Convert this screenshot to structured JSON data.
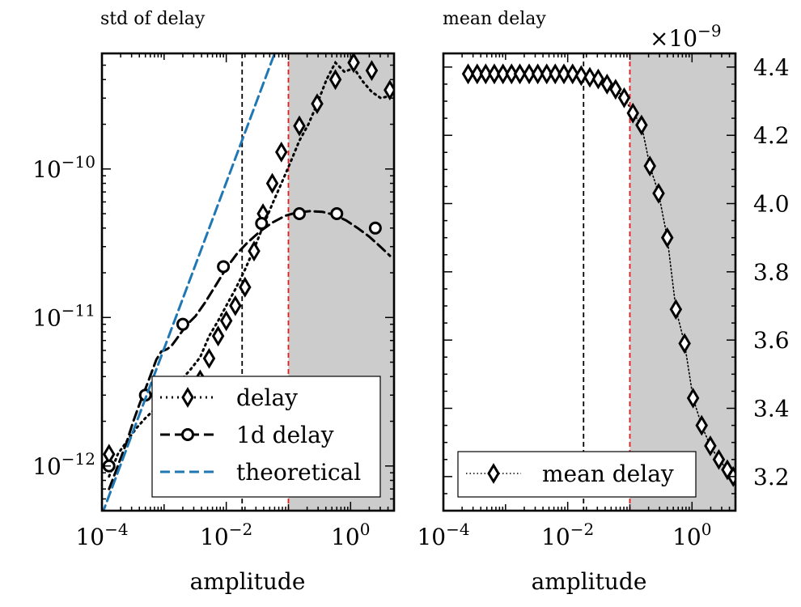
{
  "chart_data": [
    {
      "type": "line",
      "title": "std of delay",
      "xlabel": "amplitude",
      "ylabel": "",
      "xscale": "log",
      "yscale": "log",
      "xlim": [
        0.0001,
        5.0
      ],
      "ylim": [
        5e-13,
        6e-10
      ],
      "x_ticks": [
        {
          "value": 0.0001,
          "base": "10",
          "exp": "−4"
        },
        {
          "value": 0.01,
          "base": "10",
          "exp": "−2"
        },
        {
          "value": 1,
          "base": "10",
          "exp": "0"
        }
      ],
      "y_ticks": [
        {
          "value": 1e-12,
          "base": "10",
          "exp": "−12"
        },
        {
          "value": 1e-11,
          "base": "10",
          "exp": "−11"
        },
        {
          "value": 1e-10,
          "base": "10",
          "exp": "−10"
        }
      ],
      "grid": false,
      "legend_position": "lower-right",
      "shaded_region": {
        "x_from": 0.1,
        "x_to": 5.0,
        "color": "#cccccc"
      },
      "vlines": [
        {
          "x": 0.018,
          "color": "#000000",
          "style": "dashed"
        },
        {
          "x": 0.1,
          "color": "#e41a1c",
          "style": "dashed"
        }
      ],
      "series": [
        {
          "name": "delay",
          "color": "#000000",
          "line_style": "dotted",
          "marker": "diamond",
          "x": [
            0.00013,
            0.00018,
            0.00026,
            0.00036,
            0.0005,
            0.0007,
            0.00098,
            0.0014,
            0.0019,
            0.0027,
            0.0038,
            0.0053,
            0.0074,
            0.01,
            0.014,
            0.02,
            0.028,
            0.039,
            0.055,
            0.077,
            0.107,
            0.15,
            0.21,
            0.29,
            0.41,
            0.57,
            0.8,
            1.12,
            1.56,
            2.19,
            3.06,
            4.28
          ],
          "values": [
            8.5e-13,
            1.2e-12,
            1.5e-12,
            1.8e-12,
            2.1e-12,
            2.4e-12,
            2.7e-12,
            3.2e-12,
            3.8e-12,
            4.5e-12,
            5.4e-12,
            7.5e-12,
            9.5e-12,
            1.2e-11,
            1.55e-11,
            2.1e-11,
            2.9e-11,
            4.1e-11,
            5.8e-11,
            8e-11,
            1.1e-10,
            1.55e-10,
            2e-10,
            2.75e-10,
            4e-10,
            5.2e-10,
            4.5e-10,
            4.8e-10,
            3.9e-10,
            3.3e-10,
            3e-10,
            3.1e-10
          ],
          "marker_x": [
            0.00013,
            0.0019,
            0.0027,
            0.0038,
            0.0053,
            0.0074,
            0.01,
            0.014,
            0.02,
            0.028,
            0.039,
            0.055,
            0.077,
            0.15,
            0.29,
            0.57,
            1.12,
            2.19,
            4.28
          ],
          "marker_values": [
            1.2e-12,
            1.7e-12,
            2.7e-12,
            3.8e-12,
            5.3e-12,
            7.5e-12,
            9.5e-12,
            1.2e-11,
            1.6e-11,
            2.8e-11,
            5e-11,
            8e-11,
            1.3e-10,
            1.95e-10,
            2.75e-10,
            4e-10,
            5.2e-10,
            4.6e-10,
            3.4e-10
          ]
        },
        {
          "name": "1d delay",
          "color": "#000000",
          "line_style": "dashed",
          "marker": "circle",
          "x": [
            0.00013,
            0.00018,
            0.00025,
            0.00032,
            0.0004,
            0.0005,
            0.00062,
            0.00075,
            0.0009,
            0.0011,
            0.0013,
            0.0016,
            0.002,
            0.0025,
            0.0032,
            0.0045,
            0.0065,
            0.01,
            0.015,
            0.022,
            0.035,
            0.055,
            0.09,
            0.14,
            0.22,
            0.35,
            0.55,
            0.85,
            1.3,
            2.0,
            3.0,
            4.3
          ],
          "values": [
            7e-13,
            1e-12,
            1.45e-12,
            2e-12,
            2.6e-12,
            3.3e-12,
            4.2e-12,
            5.2e-12,
            5.9e-12,
            6.1e-12,
            6.4e-12,
            7.2e-12,
            8.2e-12,
            9.2e-12,
            1.02e-11,
            1.25e-11,
            1.6e-11,
            2.15e-11,
            2.7e-11,
            3.2e-11,
            3.8e-11,
            4.35e-11,
            4.85e-11,
            5.1e-11,
            5.2e-11,
            5.15e-11,
            4.9e-11,
            4.5e-11,
            4e-11,
            3.5e-11,
            3e-11,
            2.6e-11
          ],
          "marker_x": [
            0.00013,
            0.0005,
            0.002,
            0.009,
            0.037,
            0.15,
            0.6,
            2.5
          ],
          "marker_values": [
            1e-12,
            3e-12,
            9e-12,
            2.2e-11,
            4.3e-11,
            5e-11,
            5e-11,
            4e-11
          ]
        },
        {
          "name": "theoretical",
          "color": "#1f77b4",
          "line_style": "dashed",
          "marker": "none",
          "x": [
            0.0001,
            0.06
          ],
          "values": [
            4.7e-13,
            6e-10
          ]
        }
      ]
    },
    {
      "type": "line",
      "title": "mean delay",
      "xlabel": "amplitude",
      "ylabel": "",
      "xscale": "log",
      "yscale": "linear",
      "y_multiplier": "×10",
      "y_multiplier_exp": "−9",
      "xlim": [
        0.0001,
        5.0
      ],
      "ylim": [
        3.1,
        4.44
      ],
      "x_ticks": [
        {
          "value": 0.0001,
          "base": "10",
          "exp": "−4"
        },
        {
          "value": 0.01,
          "base": "10",
          "exp": "−2"
        },
        {
          "value": 1,
          "base": "10",
          "exp": "0"
        }
      ],
      "y_ticks": [
        {
          "value": 3.2,
          "label": "3.2"
        },
        {
          "value": 3.4,
          "label": "3.4"
        },
        {
          "value": 3.6,
          "label": "3.6"
        },
        {
          "value": 3.8,
          "label": "3.8"
        },
        {
          "value": 4.0,
          "label": "4.0"
        },
        {
          "value": 4.2,
          "label": "4.2"
        },
        {
          "value": 4.4,
          "label": "4.4"
        }
      ],
      "y_axis_side": "right",
      "grid": false,
      "legend_position": "lower-center",
      "shaded_region": {
        "x_from": 0.1,
        "x_to": 5.0,
        "color": "#cccccc"
      },
      "vlines": [
        {
          "x": 0.018,
          "color": "#000000",
          "style": "dashed"
        },
        {
          "x": 0.1,
          "color": "#e41a1c",
          "style": "dashed"
        }
      ],
      "series": [
        {
          "name": "mean delay",
          "color": "#000000",
          "line_style": "dotted",
          "marker": "diamond",
          "x": [
            0.00025,
            0.00035,
            0.00048,
            0.00066,
            0.00091,
            0.00125,
            0.0017,
            0.0024,
            0.0033,
            0.0046,
            0.0063,
            0.0087,
            0.012,
            0.0165,
            0.0227,
            0.031,
            0.043,
            0.059,
            0.081,
            0.112,
            0.154,
            0.21,
            0.29,
            0.4,
            0.55,
            0.76,
            1.04,
            1.43,
            1.97,
            2.7,
            3.7,
            4.6
          ],
          "values": [
            4.38,
            4.38,
            4.38,
            4.38,
            4.38,
            4.38,
            4.38,
            4.38,
            4.38,
            4.38,
            4.38,
            4.38,
            4.38,
            4.375,
            4.37,
            4.365,
            4.35,
            4.335,
            4.31,
            4.265,
            4.23,
            4.11,
            4.03,
            3.9,
            3.69,
            3.59,
            3.43,
            3.35,
            3.29,
            3.25,
            3.22,
            3.2
          ]
        }
      ]
    }
  ]
}
